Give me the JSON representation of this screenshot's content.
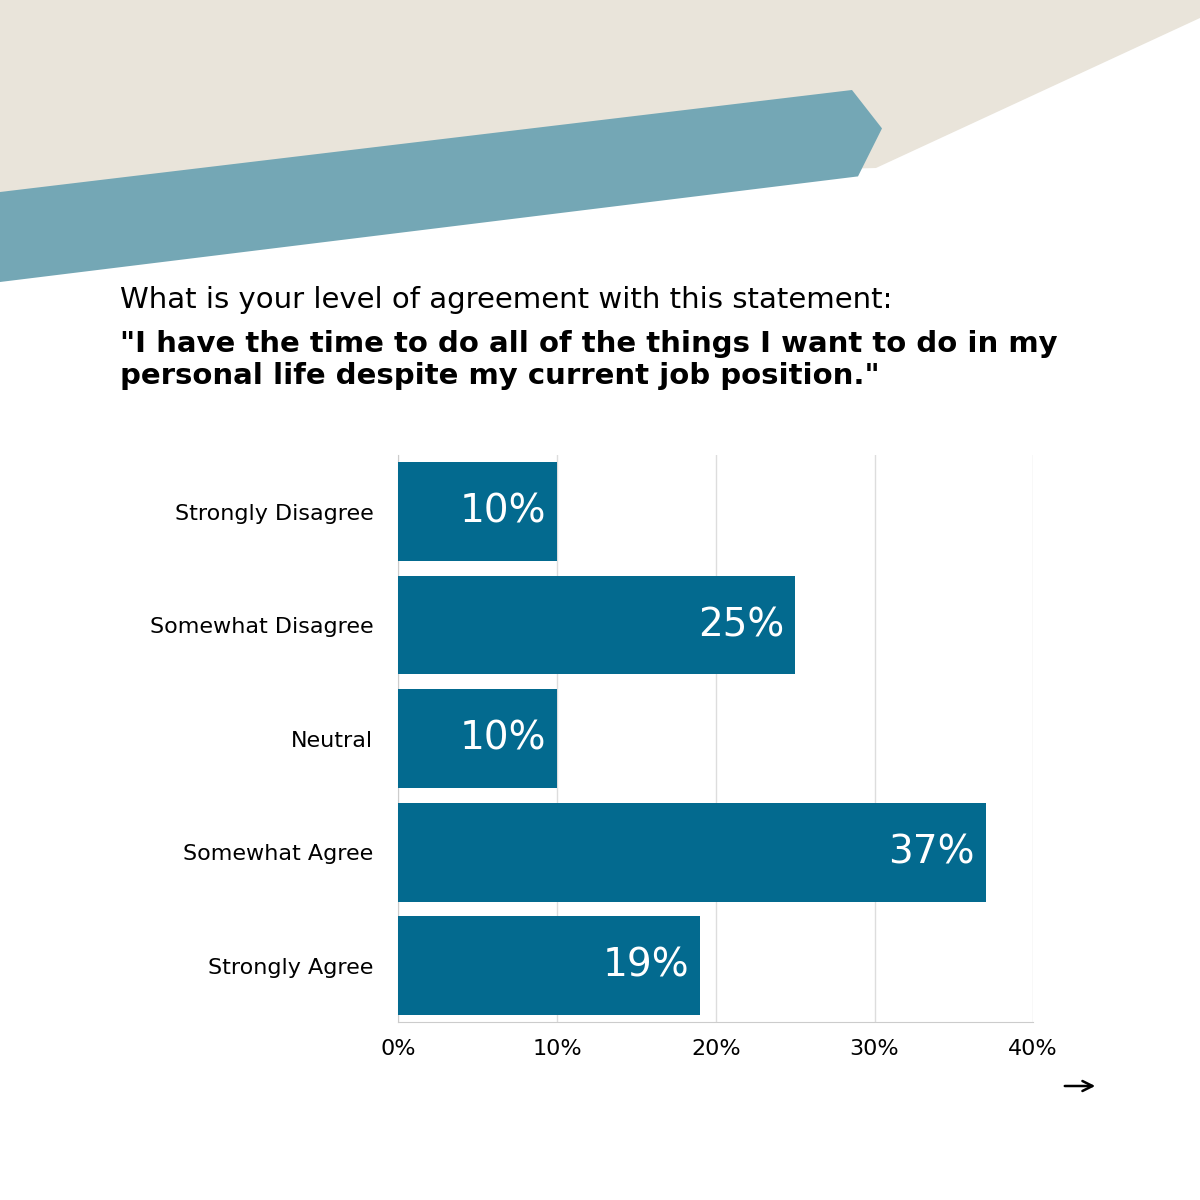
{
  "chart_data": {
    "type": "bar",
    "orientation": "horizontal",
    "title": "What is your level of agreement with this statement:",
    "subtitle": "\"I have the time to do all of the things I want to do in my personal life despite my current job position.\"",
    "categories": [
      "Strongly Disagree",
      "Somewhat Disagree",
      "Neutral",
      "Somewhat Agree",
      "Strongly Agree"
    ],
    "values": [
      10,
      25,
      10,
      37,
      19
    ],
    "value_labels": [
      "10%",
      "25%",
      "10%",
      "37%",
      "19%"
    ],
    "data_labels": true,
    "color": "#036a8f",
    "xlim": [
      0,
      40
    ],
    "xticks": [
      {
        "value": 0,
        "label": "0%"
      },
      {
        "value": 10,
        "label": "10%"
      },
      {
        "value": 20,
        "label": "20%"
      },
      {
        "value": 30,
        "label": "30%"
      },
      {
        "value": 40,
        "label": "40%"
      }
    ],
    "grid": true
  }
}
